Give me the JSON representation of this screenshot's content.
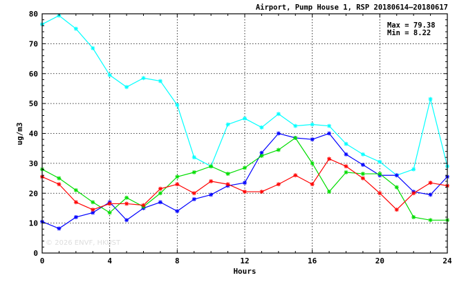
{
  "chart_data": {
    "type": "line",
    "title": "Airport, Pump House 1, RSP 20180614–20180617",
    "xlabel": "Hours",
    "ylabel": "ug/m3",
    "xlim": [
      0,
      24
    ],
    "ylim": [
      0,
      80
    ],
    "x_ticks": [
      0,
      4,
      8,
      12,
      16,
      20,
      24
    ],
    "y_ticks": [
      0,
      10,
      20,
      30,
      40,
      50,
      60,
      70,
      80
    ],
    "grid": true,
    "stats": {
      "max_label": "Max = 79.38",
      "min_label": "Min =  8.22"
    },
    "watermark": "© 2026 ENVF, HKUST",
    "x": [
      0,
      1,
      2,
      3,
      4,
      5,
      6,
      7,
      8,
      9,
      10,
      11,
      12,
      13,
      14,
      15,
      16,
      17,
      18,
      19,
      20,
      21,
      22,
      23,
      24
    ],
    "series": [
      {
        "color": "#00ffff",
        "values": [
          76.5,
          79.4,
          75.0,
          68.5,
          59.5,
          55.5,
          58.5,
          57.5,
          49.5,
          32.0,
          29.0,
          43.0,
          45.0,
          42.0,
          46.5,
          42.5,
          43.0,
          42.5,
          36.5,
          33.0,
          30.5,
          26.0,
          28.0,
          51.5,
          29.0
        ]
      },
      {
        "color": "#0000ff",
        "values": [
          10.5,
          8.2,
          12.0,
          13.5,
          17.0,
          11.0,
          15.0,
          17.0,
          14.0,
          18.0,
          19.5,
          22.5,
          23.5,
          33.5,
          40.0,
          38.5,
          38.0,
          40.0,
          33.0,
          29.5,
          26.0,
          26.0,
          20.5,
          19.5,
          25.5
        ]
      },
      {
        "color": "#00dd00",
        "values": [
          28.0,
          25.0,
          21.0,
          17.0,
          13.5,
          18.5,
          15.5,
          20.0,
          25.5,
          27.0,
          29.0,
          26.5,
          28.5,
          32.5,
          34.5,
          38.5,
          30.0,
          20.5,
          27.0,
          26.5,
          26.5,
          22.0,
          12.0,
          11.0,
          11.0
        ]
      },
      {
        "color": "#ff0000",
        "values": [
          25.5,
          23.0,
          17.0,
          14.5,
          16.5,
          16.5,
          16.0,
          21.5,
          23.0,
          20.0,
          24.0,
          23.0,
          20.5,
          20.5,
          23.0,
          26.0,
          23.0,
          31.5,
          29.0,
          25.0,
          20.0,
          14.5,
          20.0,
          23.5,
          22.5
        ]
      }
    ]
  }
}
